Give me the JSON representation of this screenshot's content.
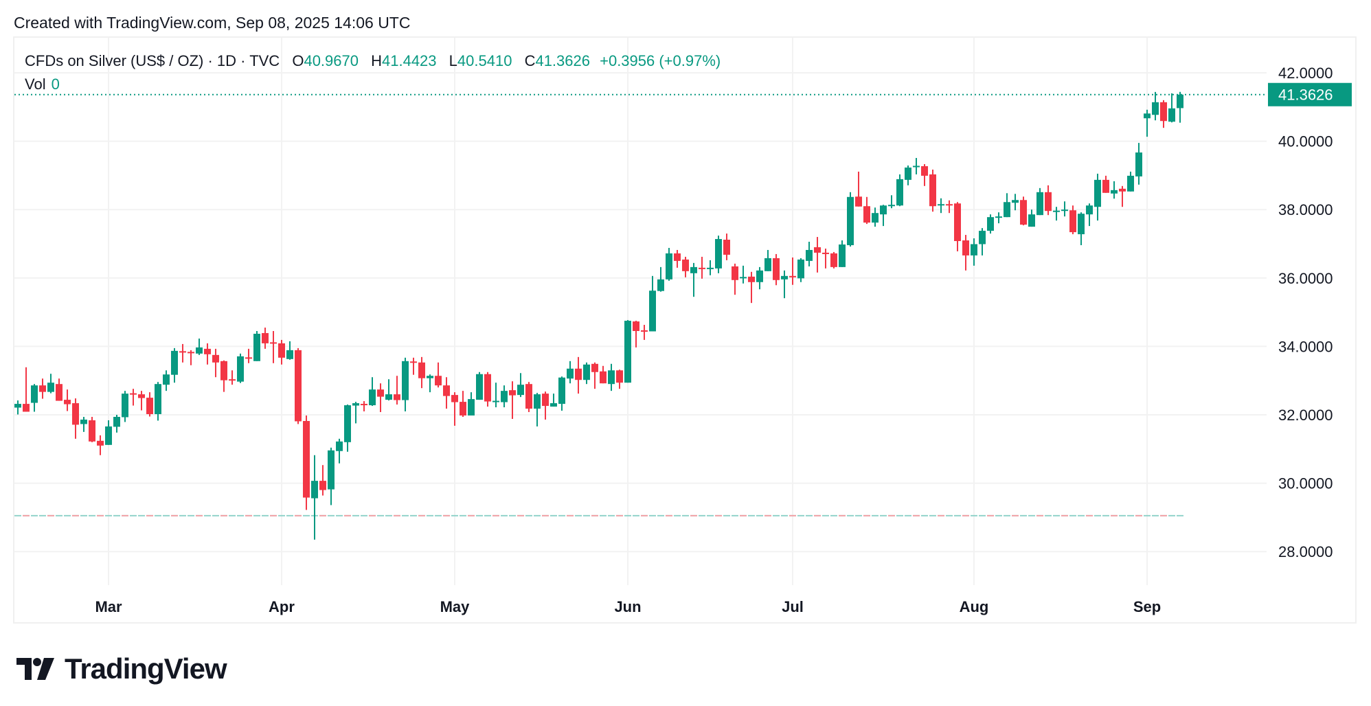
{
  "header": {
    "created": "Created with TradingView.com, Sep 08, 2025 14:06 UTC"
  },
  "legend": {
    "symbol": "CFDs on Silver (US$ / OZ) · 1D · TVC",
    "open_label": "O",
    "open": "40.9670",
    "high_label": "H",
    "high": "41.4423",
    "low_label": "L",
    "low": "40.5410",
    "close_label": "C",
    "close": "41.3626",
    "change": "+0.3956 (+0.97%)",
    "vol_label": "Vol",
    "vol": "0"
  },
  "brand": {
    "logo_text": "TradingView"
  },
  "colors": {
    "up": "#089981",
    "down": "#F23645",
    "grid": "#f2f2f2"
  },
  "chart_data": {
    "type": "candlestick",
    "title": "",
    "ylim": [
      27,
      42.5
    ],
    "grid": true,
    "y_ticks": [
      "42.0000",
      "40.0000",
      "38.0000",
      "36.0000",
      "34.0000",
      "32.0000",
      "30.0000",
      "28.0000"
    ],
    "x_ticks": [
      "Mar",
      "Apr",
      "May",
      "Jun",
      "Jul",
      "Aug",
      "Sep"
    ],
    "last_price": "41.3626",
    "reference_line": 29.05,
    "ohlc_fields": [
      "open",
      "high",
      "low",
      "close"
    ],
    "candles": [
      [
        32.21,
        32.42,
        32.01,
        32.32
      ],
      [
        32.32,
        33.39,
        32.09,
        32.09
      ],
      [
        32.35,
        32.9,
        32.09,
        32.86
      ],
      [
        32.86,
        33.06,
        32.47,
        32.67
      ],
      [
        32.67,
        33.2,
        32.63,
        32.94
      ],
      [
        32.9,
        33.06,
        32.41,
        32.41
      ],
      [
        32.44,
        32.74,
        32.11,
        32.31
      ],
      [
        32.34,
        32.48,
        31.3,
        31.71
      ],
      [
        31.73,
        31.94,
        31.5,
        31.86
      ],
      [
        31.84,
        31.94,
        31.2,
        31.22
      ],
      [
        31.24,
        31.4,
        30.82,
        31.1
      ],
      [
        31.12,
        31.84,
        31.12,
        31.66
      ],
      [
        31.65,
        32.0,
        31.48,
        31.94
      ],
      [
        31.93,
        32.7,
        31.79,
        32.62
      ],
      [
        32.63,
        32.76,
        32.27,
        32.62
      ],
      [
        32.6,
        32.7,
        32.13,
        32.49
      ],
      [
        32.5,
        32.66,
        31.95,
        32.02
      ],
      [
        32.02,
        32.96,
        31.83,
        32.9
      ],
      [
        32.88,
        33.3,
        32.7,
        33.18
      ],
      [
        33.17,
        33.95,
        32.94,
        33.87
      ],
      [
        33.86,
        34.07,
        33.53,
        33.85
      ],
      [
        33.84,
        33.89,
        33.45,
        33.83
      ],
      [
        33.79,
        34.23,
        33.75,
        33.97
      ],
      [
        33.93,
        34.09,
        33.47,
        33.77
      ],
      [
        33.75,
        33.93,
        33.1,
        33.53
      ],
      [
        33.57,
        33.59,
        32.67,
        33.01
      ],
      [
        33.04,
        33.3,
        32.88,
        33.03
      ],
      [
        32.97,
        33.79,
        32.93,
        33.71
      ],
      [
        33.68,
        33.93,
        33.51,
        33.67
      ],
      [
        33.57,
        34.45,
        33.57,
        34.37
      ],
      [
        34.39,
        34.55,
        33.93,
        34.09
      ],
      [
        34.12,
        34.45,
        33.51,
        34.11
      ],
      [
        34.09,
        34.19,
        33.47,
        33.67
      ],
      [
        33.63,
        34.15,
        33.61,
        33.89
      ],
      [
        33.89,
        33.95,
        31.73,
        31.81
      ],
      [
        31.82,
        31.98,
        29.22,
        29.58
      ],
      [
        29.56,
        30.82,
        28.35,
        30.07
      ],
      [
        30.07,
        30.53,
        29.64,
        29.8
      ],
      [
        29.82,
        31.04,
        29.36,
        30.96
      ],
      [
        30.94,
        31.3,
        30.58,
        31.22
      ],
      [
        31.2,
        32.3,
        30.92,
        32.28
      ],
      [
        32.27,
        32.38,
        31.75,
        32.34
      ],
      [
        32.32,
        32.4,
        32.1,
        32.31
      ],
      [
        32.28,
        33.1,
        32.26,
        32.74
      ],
      [
        32.74,
        32.92,
        32.08,
        32.53
      ],
      [
        32.44,
        33.04,
        32.42,
        32.6
      ],
      [
        32.6,
        33.14,
        32.3,
        32.43
      ],
      [
        32.43,
        33.67,
        32.1,
        33.57
      ],
      [
        33.56,
        33.67,
        33.17,
        33.55
      ],
      [
        33.53,
        33.69,
        32.78,
        33.07
      ],
      [
        33.07,
        33.18,
        32.66,
        33.14
      ],
      [
        33.14,
        33.53,
        32.8,
        32.86
      ],
      [
        32.86,
        33.1,
        32.18,
        32.55
      ],
      [
        32.58,
        32.66,
        31.68,
        32.37
      ],
      [
        32.38,
        32.7,
        31.94,
        31.98
      ],
      [
        31.98,
        32.66,
        31.98,
        32.46
      ],
      [
        32.44,
        33.25,
        32.44,
        33.19
      ],
      [
        33.19,
        33.25,
        32.24,
        32.39
      ],
      [
        32.39,
        32.94,
        32.22,
        32.41
      ],
      [
        32.37,
        32.86,
        32.22,
        32.7
      ],
      [
        32.72,
        32.98,
        31.88,
        32.57
      ],
      [
        32.58,
        33.22,
        32.52,
        32.88
      ],
      [
        32.9,
        32.96,
        32.08,
        32.18
      ],
      [
        32.18,
        32.64,
        31.66,
        32.6
      ],
      [
        32.62,
        32.68,
        31.86,
        32.26
      ],
      [
        32.24,
        32.62,
        32.24,
        32.34
      ],
      [
        32.32,
        33.12,
        32.12,
        33.09
      ],
      [
        33.06,
        33.57,
        32.92,
        33.35
      ],
      [
        33.35,
        33.69,
        32.62,
        33.02
      ],
      [
        33.02,
        33.53,
        32.9,
        33.47
      ],
      [
        33.49,
        33.53,
        32.76,
        33.25
      ],
      [
        33.27,
        33.43,
        32.92,
        32.92
      ],
      [
        32.9,
        33.49,
        32.7,
        33.3
      ],
      [
        33.3,
        33.32,
        32.76,
        32.94
      ],
      [
        32.94,
        34.77,
        32.94,
        34.75
      ],
      [
        34.73,
        34.75,
        33.97,
        34.45
      ],
      [
        34.47,
        34.63,
        34.19,
        34.46
      ],
      [
        34.44,
        36.06,
        34.44,
        35.63
      ],
      [
        35.62,
        36.32,
        35.6,
        35.96
      ],
      [
        35.96,
        36.88,
        35.92,
        36.72
      ],
      [
        36.72,
        36.82,
        36.3,
        36.5
      ],
      [
        36.54,
        36.62,
        36.02,
        36.2
      ],
      [
        36.14,
        36.44,
        35.45,
        36.32
      ],
      [
        36.3,
        36.62,
        35.98,
        36.29
      ],
      [
        36.29,
        36.52,
        36.08,
        36.3
      ],
      [
        36.28,
        37.24,
        36.14,
        37.14
      ],
      [
        37.12,
        37.3,
        36.52,
        36.68
      ],
      [
        36.34,
        36.42,
        35.51,
        35.94
      ],
      [
        36.02,
        36.36,
        35.84,
        36.03
      ],
      [
        36.04,
        36.18,
        35.27,
        35.88
      ],
      [
        35.88,
        36.32,
        35.67,
        36.22
      ],
      [
        36.2,
        36.82,
        36.2,
        36.58
      ],
      [
        36.58,
        36.7,
        35.79,
        35.94
      ],
      [
        35.96,
        36.22,
        35.41,
        36.06
      ],
      [
        36.06,
        36.6,
        35.8,
        36.05
      ],
      [
        35.99,
        36.58,
        35.88,
        36.54
      ],
      [
        36.5,
        37.06,
        36.34,
        36.82
      ],
      [
        36.9,
        37.2,
        36.16,
        36.74
      ],
      [
        36.74,
        36.86,
        36.28,
        36.73
      ],
      [
        36.72,
        36.76,
        36.28,
        36.32
      ],
      [
        36.32,
        37.1,
        36.32,
        36.98
      ],
      [
        36.96,
        38.51,
        36.92,
        38.37
      ],
      [
        38.38,
        39.11,
        38.09,
        38.09
      ],
      [
        38.1,
        38.37,
        37.58,
        37.62
      ],
      [
        37.62,
        38.06,
        37.5,
        37.9
      ],
      [
        37.86,
        38.14,
        37.52,
        38.12
      ],
      [
        38.12,
        38.42,
        38.04,
        38.14
      ],
      [
        38.12,
        39.03,
        38.1,
        38.89
      ],
      [
        38.87,
        39.29,
        38.71,
        39.23
      ],
      [
        39.27,
        39.51,
        39.03,
        39.28
      ],
      [
        39.27,
        39.33,
        38.69,
        38.99
      ],
      [
        39.03,
        39.17,
        37.94,
        38.1
      ],
      [
        38.15,
        38.33,
        37.9,
        38.16
      ],
      [
        38.16,
        38.27,
        37.9,
        38.15
      ],
      [
        38.18,
        38.22,
        36.78,
        37.08
      ],
      [
        37.1,
        37.26,
        36.22,
        36.66
      ],
      [
        36.66,
        37.16,
        36.36,
        36.99
      ],
      [
        36.99,
        37.46,
        36.66,
        37.38
      ],
      [
        37.38,
        37.86,
        37.3,
        37.78
      ],
      [
        37.78,
        37.92,
        37.6,
        37.8
      ],
      [
        37.78,
        38.48,
        37.78,
        38.22
      ],
      [
        38.2,
        38.46,
        37.98,
        38.28
      ],
      [
        38.28,
        38.38,
        37.54,
        37.56
      ],
      [
        37.5,
        38.0,
        37.5,
        37.86
      ],
      [
        37.84,
        38.63,
        37.84,
        38.51
      ],
      [
        38.51,
        38.71,
        37.84,
        37.96
      ],
      [
        37.94,
        38.08,
        37.68,
        37.97
      ],
      [
        37.98,
        38.24,
        37.8,
        38.0
      ],
      [
        37.98,
        38.12,
        37.28,
        37.34
      ],
      [
        37.28,
        37.92,
        36.96,
        37.88
      ],
      [
        37.86,
        38.18,
        37.52,
        38.12
      ],
      [
        38.08,
        39.05,
        37.68,
        38.87
      ],
      [
        38.87,
        38.99,
        38.49,
        38.49
      ],
      [
        38.47,
        38.83,
        38.32,
        38.57
      ],
      [
        38.61,
        38.69,
        38.08,
        38.53
      ],
      [
        38.53,
        39.11,
        38.53,
        38.99
      ],
      [
        38.97,
        39.95,
        38.73,
        39.67
      ],
      [
        40.67,
        40.92,
        40.13,
        40.81
      ],
      [
        40.77,
        41.44,
        40.61,
        41.14
      ],
      [
        41.14,
        41.2,
        40.39,
        40.59
      ],
      [
        40.57,
        41.4,
        40.55,
        40.96
      ],
      [
        40.967,
        41.4423,
        40.541,
        41.3626
      ]
    ]
  }
}
